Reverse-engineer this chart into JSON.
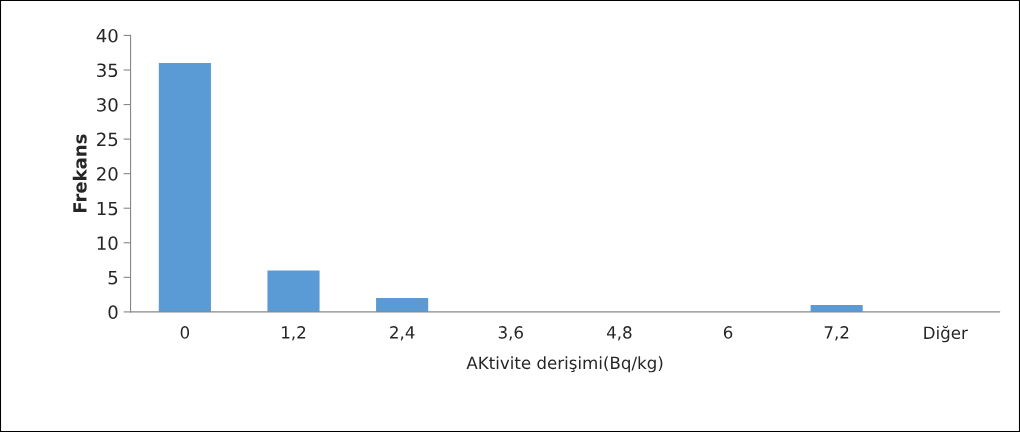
{
  "chart_data": {
    "type": "bar",
    "xlabel": "AKtivite derişimi(Bq/kg)",
    "ylabel": "Frekans",
    "categories": [
      "0",
      "1,2",
      "2,4",
      "3,6",
      "4,8",
      "6",
      "7,2",
      "Diğer"
    ],
    "values": [
      36,
      6,
      2,
      0,
      0,
      0,
      1,
      0
    ],
    "color": "#5b9bd5",
    "ylim": [
      0,
      40
    ],
    "yticks": [
      0,
      5,
      10,
      15,
      20,
      25,
      30,
      35,
      40
    ],
    "grid": false,
    "legend": false
  }
}
